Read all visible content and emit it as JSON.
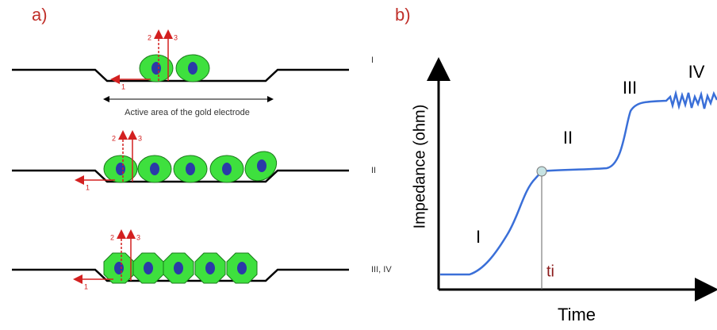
{
  "panel_a": {
    "label": "a)",
    "electrode_label": "Active area of the gold electrode",
    "stages": [
      {
        "label": "I",
        "arrow_labels": [
          "1",
          "2",
          "3"
        ]
      },
      {
        "label": "II",
        "arrow_labels": [
          "1",
          "2",
          "3"
        ]
      },
      {
        "label": "III, IV",
        "arrow_labels": [
          "1",
          "2",
          "3"
        ]
      }
    ]
  },
  "panel_b": {
    "label": "b)",
    "y_axis_label": "Impedance (ohm)",
    "x_axis_label": "Time",
    "phases": [
      "I",
      "II",
      "III",
      "IV"
    ],
    "marker_label": "ti"
  }
}
